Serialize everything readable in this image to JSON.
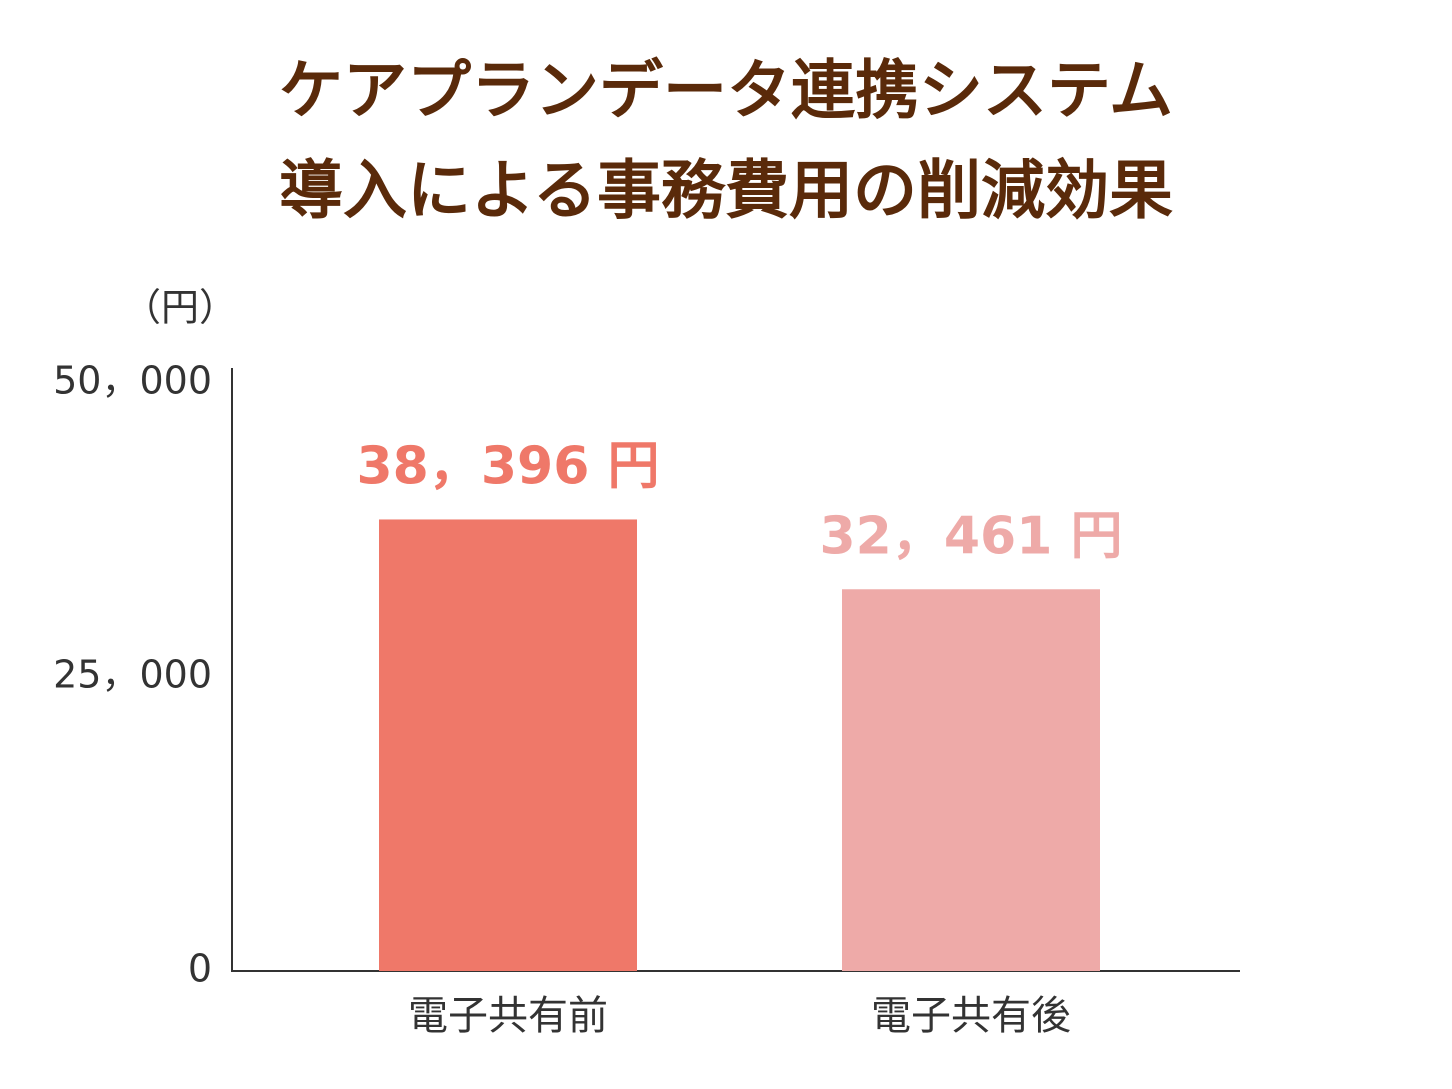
{
  "chart_data": {
    "type": "bar",
    "title": [
      "ケアプランデータ連携システム",
      "導入による事務費用の削減効果"
    ],
    "ylabel": "（円）",
    "categories": [
      "電子共有前",
      "電子共有後"
    ],
    "values": [
      38396,
      32461
    ],
    "value_labels": [
      "38，396 円",
      "32，461 円"
    ],
    "colors": [
      "#ef7869",
      "#eeaaa8"
    ],
    "ylim": [
      0,
      50000
    ],
    "yticks": [
      0,
      {
        "value": 25000,
        "label": "25，000"
      },
      {
        "value": 50000,
        "label": "50，000"
      }
    ],
    "grid": false
  }
}
